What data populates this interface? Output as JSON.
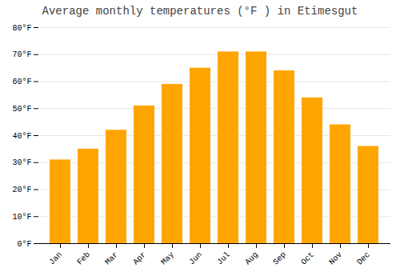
{
  "chart_data": {
    "type": "bar",
    "title": "Average monthly temperatures (°F ) in Etimesgut",
    "categories": [
      "Jan",
      "Feb",
      "Mar",
      "Apr",
      "May",
      "Jun",
      "Jul",
      "Aug",
      "Sep",
      "Oct",
      "Nov",
      "Dec"
    ],
    "values": [
      31,
      35,
      42,
      51,
      59,
      65,
      71,
      71,
      64,
      54,
      44,
      36
    ],
    "color": "#FFA500",
    "ylim": [
      0,
      80
    ],
    "yticks": [
      {
        "value": 0,
        "label": "0°F"
      },
      {
        "value": 10,
        "label": "10°F"
      },
      {
        "value": 20,
        "label": "20°F"
      },
      {
        "value": 30,
        "label": "30°F"
      },
      {
        "value": 40,
        "label": "40°F"
      },
      {
        "value": 50,
        "label": "50°F"
      },
      {
        "value": 60,
        "label": "60°F"
      },
      {
        "value": 70,
        "label": "70°F"
      },
      {
        "value": 80,
        "label": "80°F"
      }
    ],
    "grid": true
  }
}
